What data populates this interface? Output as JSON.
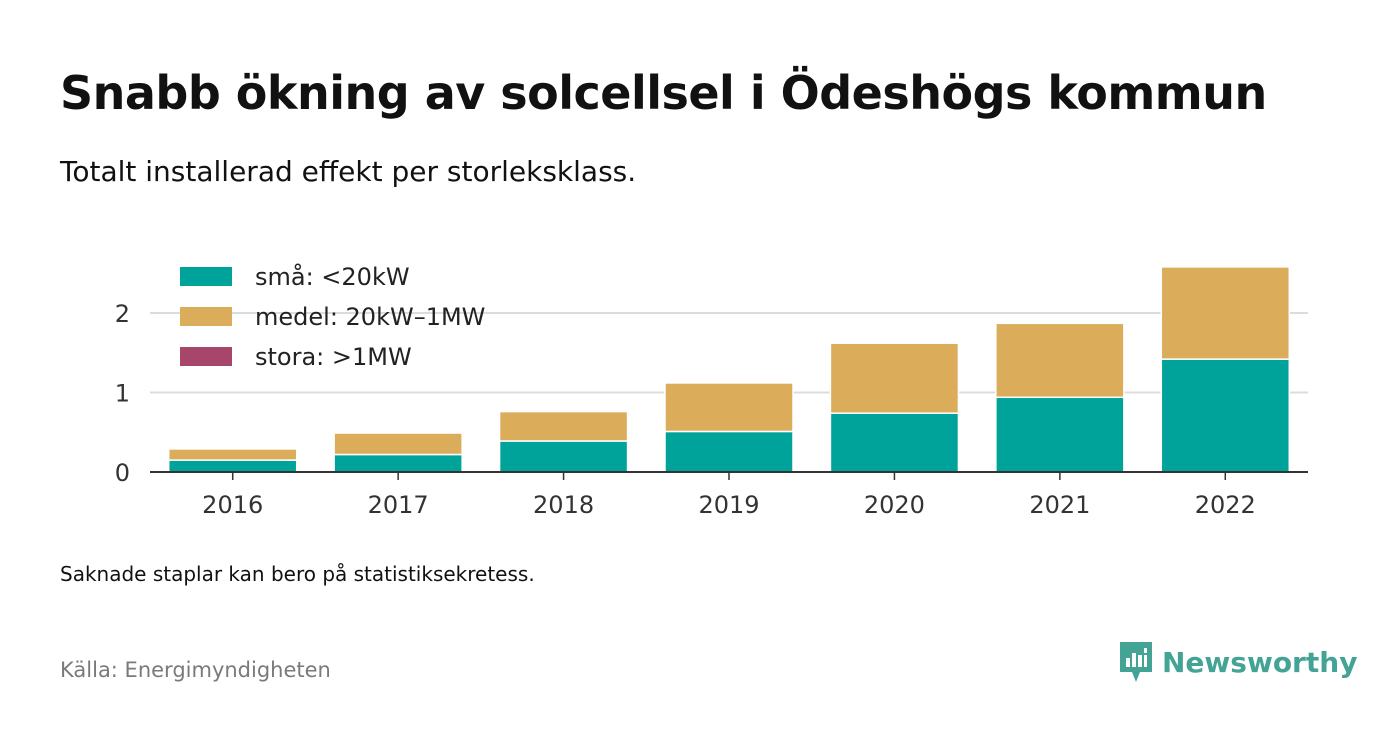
{
  "title": "Snabb ökning av solcellsel i Ödeshögs kommun",
  "subtitle": "Totalt installerad effekt per storleksklass.",
  "note": "Saknade staplar kan bero på statistiksekretess.",
  "source": "Källa: Energimyndigheten",
  "brand": {
    "name": "Newsworthy",
    "icon": "newsworthy-logo-icon",
    "color": "#43a496"
  },
  "chart_data": {
    "type": "bar",
    "stacked": true,
    "categories": [
      "2016",
      "2017",
      "2018",
      "2019",
      "2020",
      "2021",
      "2022"
    ],
    "series": [
      {
        "name": "små: <20kW",
        "color": "#00a39a",
        "values": [
          0.15,
          0.22,
          0.39,
          0.51,
          0.74,
          0.94,
          1.42
        ]
      },
      {
        "name": "medel: 20kW–1MW",
        "color": "#dbac5a",
        "values": [
          0.14,
          0.27,
          0.37,
          0.61,
          0.88,
          0.93,
          1.16
        ]
      },
      {
        "name": "stora: >1MW",
        "color": "#a8456b",
        "values": [
          0,
          0,
          0,
          0,
          0,
          0,
          0
        ]
      }
    ],
    "yticks": [
      0,
      1,
      2
    ],
    "ylim": [
      0,
      2.65
    ],
    "grid": true,
    "legend_position": "top-left"
  }
}
